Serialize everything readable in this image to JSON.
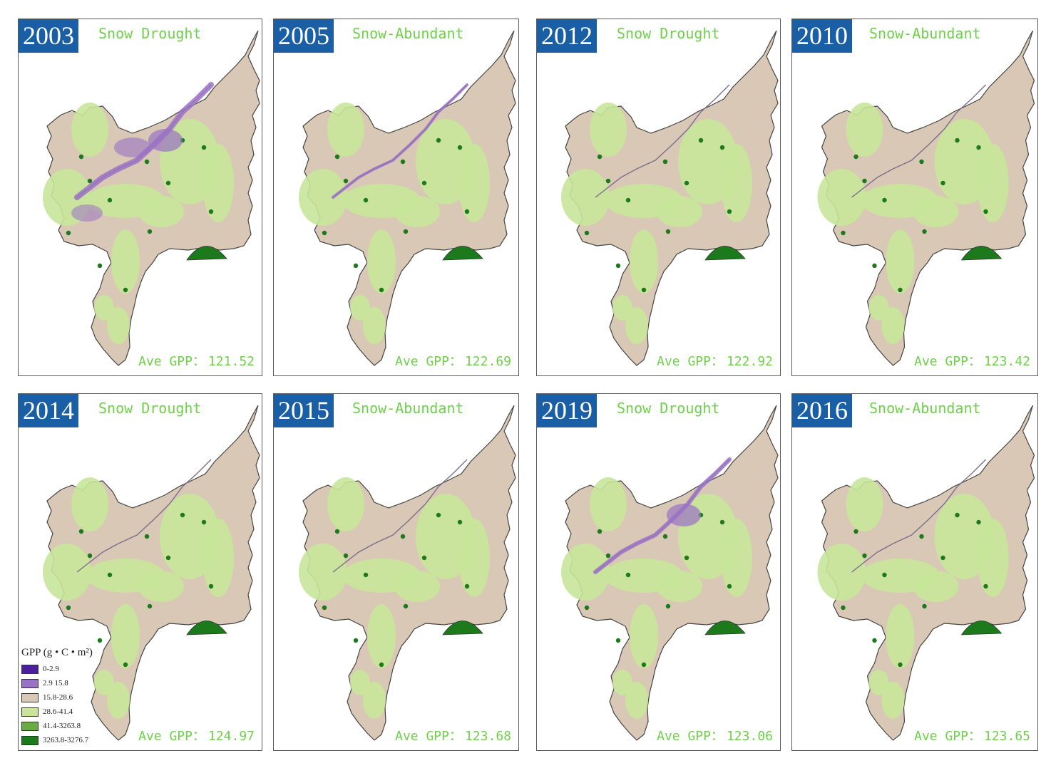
{
  "panels": [
    {
      "year": "2003",
      "class_label": "Snow Drought",
      "ave_label": "Ave GPP：",
      "ave_value": "121.52",
      "purple_level": 3
    },
    {
      "year": "2005",
      "class_label": "Snow-Abundant",
      "ave_label": "Ave GPP：",
      "ave_value": "122.69",
      "purple_level": 1
    },
    {
      "year": "2012",
      "class_label": "Snow Drought",
      "ave_label": "Ave GPP：",
      "ave_value": "122.92",
      "purple_level": 0
    },
    {
      "year": "2010",
      "class_label": "Snow-Abundant",
      "ave_label": "Ave GPP：",
      "ave_value": "123.42",
      "purple_level": 0
    },
    {
      "year": "2014",
      "class_label": "Snow Drought",
      "ave_label": "Ave GPP：",
      "ave_value": "124.97",
      "purple_level": 0
    },
    {
      "year": "2015",
      "class_label": "Snow-Abundant",
      "ave_label": "Ave GPP：",
      "ave_value": "123.68",
      "purple_level": 0
    },
    {
      "year": "2019",
      "class_label": "Snow Drought",
      "ave_label": "Ave GPP：",
      "ave_value": "123.06",
      "purple_level": 2
    },
    {
      "year": "2016",
      "class_label": "Snow-Abundant",
      "ave_label": "Ave GPP：",
      "ave_value": "123.65",
      "purple_level": 0
    }
  ],
  "legend": {
    "title": "GPP (g • C • m²)",
    "items": [
      {
        "label": "0-2.9",
        "color": "#4b1f9e"
      },
      {
        "label": "2.9 15.8",
        "color": "#9a72c4"
      },
      {
        "label": "15.8-28.6",
        "color": "#d9c8b6"
      },
      {
        "label": "28.6-41.4",
        "color": "#c8e59a"
      },
      {
        "label": "41.4-3263.8",
        "color": "#6aab46"
      },
      {
        "label": "3263.8-3276.7",
        "color": "#1c7a1c"
      }
    ]
  },
  "colors": {
    "badge": "#1a5fa6",
    "text_green": "#6fd14a",
    "base": "#d9c8b6",
    "light_green": "#c8e59a",
    "mid_green": "#6aab46",
    "dark_green": "#1c7a1c",
    "purple_light": "#9a72c4",
    "purple_dark": "#4b1f9e"
  }
}
